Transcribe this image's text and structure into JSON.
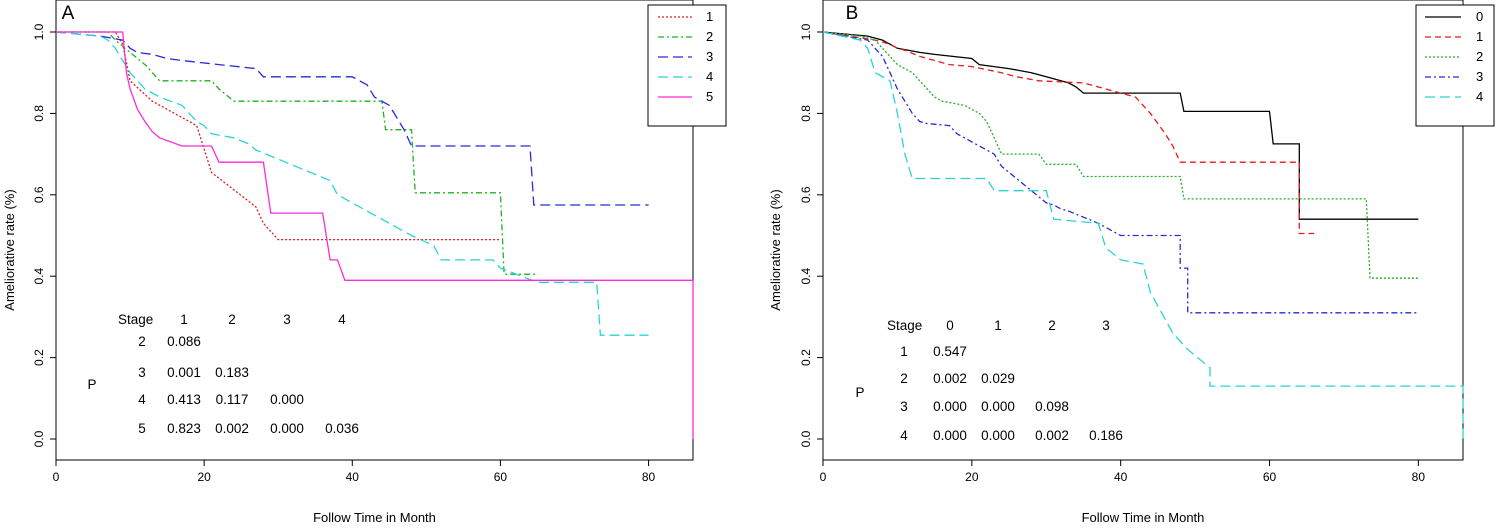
{
  "chart_data": [
    {
      "type": "line",
      "panel_label": "A",
      "xlabel": "Follow Time in Month",
      "ylabel": "Ameliorative rate (%)",
      "xlim": [
        0,
        86
      ],
      "ylim": [
        0,
        1
      ],
      "x_ticks": [
        "0",
        "20",
        "40",
        "60",
        "80"
      ],
      "y_ticks": [
        "0.0",
        "0.2",
        "0.4",
        "0.6",
        "0.8",
        "1.0"
      ],
      "legend": [
        "1",
        "2",
        "3",
        "4",
        "5"
      ],
      "series": [
        {
          "name": "1",
          "color": "#e41a1c",
          "dash": "dotted",
          "points": [
            [
              0,
              1.0
            ],
            [
              8,
              1.0
            ],
            [
              9,
              0.97
            ],
            [
              10,
              0.88
            ],
            [
              13,
              0.83
            ],
            [
              19,
              0.77
            ],
            [
              21,
              0.655
            ],
            [
              27,
              0.57
            ],
            [
              28,
              0.53
            ],
            [
              30,
              0.49
            ],
            [
              60,
              0.49
            ]
          ]
        },
        {
          "name": "2",
          "color": "#22b022",
          "dash": "dashdot",
          "points": [
            [
              0,
              1.0
            ],
            [
              7,
              1.0
            ],
            [
              8,
              0.98
            ],
            [
              10,
              0.95
            ],
            [
              12,
              0.92
            ],
            [
              14,
              0.88
            ],
            [
              21,
              0.88
            ],
            [
              22,
              0.86
            ],
            [
              24,
              0.83
            ],
            [
              44,
              0.83
            ],
            [
              44.5,
              0.76
            ],
            [
              48,
              0.76
            ],
            [
              48.5,
              0.605
            ],
            [
              60,
              0.605
            ],
            [
              60.5,
              0.405
            ],
            [
              65,
              0.405
            ]
          ]
        },
        {
          "name": "3",
          "color": "#2a2ad6",
          "dash": "longdash",
          "points": [
            [
              0,
              1.0
            ],
            [
              6,
              0.99
            ],
            [
              9,
              0.98
            ],
            [
              10,
              0.96
            ],
            [
              11,
              0.95
            ],
            [
              13,
              0.945
            ],
            [
              15,
              0.935
            ],
            [
              17,
              0.93
            ],
            [
              22,
              0.92
            ],
            [
              27,
              0.91
            ],
            [
              28,
              0.89
            ],
            [
              40,
              0.89
            ],
            [
              42,
              0.87
            ],
            [
              43,
              0.84
            ],
            [
              45,
              0.82
            ],
            [
              46,
              0.79
            ],
            [
              47,
              0.76
            ],
            [
              48,
              0.72
            ],
            [
              64,
              0.72
            ],
            [
              64.5,
              0.575
            ],
            [
              80,
              0.575
            ]
          ]
        },
        {
          "name": "4",
          "color": "#2ad4d4",
          "dash": "longdash",
          "points": [
            [
              0,
              1.0
            ],
            [
              6,
              0.99
            ],
            [
              7,
              0.98
            ],
            [
              8,
              0.96
            ],
            [
              9,
              0.93
            ],
            [
              10,
              0.9
            ],
            [
              11,
              0.88
            ],
            [
              12,
              0.86
            ],
            [
              14,
              0.84
            ],
            [
              17,
              0.82
            ],
            [
              18,
              0.8
            ],
            [
              19,
              0.78
            ],
            [
              20,
              0.77
            ],
            [
              21,
              0.75
            ],
            [
              24,
              0.74
            ],
            [
              26,
              0.725
            ],
            [
              27,
              0.71
            ],
            [
              29,
              0.695
            ],
            [
              31,
              0.68
            ],
            [
              33,
              0.665
            ],
            [
              35,
              0.65
            ],
            [
              37,
              0.635
            ],
            [
              38,
              0.6
            ],
            [
              40,
              0.58
            ],
            [
              42,
              0.56
            ],
            [
              44,
              0.54
            ],
            [
              46,
              0.52
            ],
            [
              48,
              0.5
            ],
            [
              51,
              0.475
            ],
            [
              52,
              0.44
            ],
            [
              59,
              0.44
            ],
            [
              60,
              0.42
            ],
            [
              65,
              0.385
            ],
            [
              73,
              0.385
            ],
            [
              73.5,
              0.255
            ],
            [
              80,
              0.255
            ]
          ]
        },
        {
          "name": "5",
          "color": "#ff2bd6",
          "dash": "solid",
          "points": [
            [
              0,
              1.0
            ],
            [
              9,
              1.0
            ],
            [
              9.5,
              0.9
            ],
            [
              10,
              0.86
            ],
            [
              11,
              0.81
            ],
            [
              12,
              0.78
            ],
            [
              13,
              0.755
            ],
            [
              14,
              0.74
            ],
            [
              17,
              0.72
            ],
            [
              21,
              0.72
            ],
            [
              22,
              0.68
            ],
            [
              28,
              0.68
            ],
            [
              29,
              0.555
            ],
            [
              36,
              0.555
            ],
            [
              37,
              0.44
            ],
            [
              38,
              0.44
            ],
            [
              39,
              0.39
            ],
            [
              86,
              0.39
            ],
            [
              86,
              0.0
            ]
          ]
        }
      ],
      "pvalue_table": {
        "stage_label": "Stage",
        "p_label": "P",
        "columns": [
          "1",
          "2",
          "3",
          "4"
        ],
        "rows": [
          {
            "stage": "2",
            "values": [
              "0.086"
            ]
          },
          {
            "stage": "3",
            "values": [
              "0.001",
              "0.183"
            ]
          },
          {
            "stage": "4",
            "values": [
              "0.413",
              "0.117",
              "0.000"
            ]
          },
          {
            "stage": "5",
            "values": [
              "0.823",
              "0.002",
              "0.000",
              "0.036"
            ]
          }
        ]
      }
    },
    {
      "type": "line",
      "panel_label": "B",
      "xlabel": "Follow Time in Month",
      "ylabel": "Ameliorative rate (%)",
      "xlim": [
        0,
        86
      ],
      "ylim": [
        0,
        1
      ],
      "x_ticks": [
        "0",
        "20",
        "40",
        "60",
        "80"
      ],
      "y_ticks": [
        "0.0",
        "0.2",
        "0.4",
        "0.6",
        "0.8",
        "1.0"
      ],
      "legend": [
        "0",
        "1",
        "2",
        "3",
        "4"
      ],
      "series": [
        {
          "name": "0",
          "color": "#000000",
          "dash": "solid",
          "points": [
            [
              0,
              1.0
            ],
            [
              6,
              0.99
            ],
            [
              8,
              0.98
            ],
            [
              9,
              0.97
            ],
            [
              10,
              0.96
            ],
            [
              13,
              0.95
            ],
            [
              15,
              0.945
            ],
            [
              20,
              0.935
            ],
            [
              21,
              0.92
            ],
            [
              25,
              0.91
            ],
            [
              28,
              0.9
            ],
            [
              30,
              0.89
            ],
            [
              33,
              0.875
            ],
            [
              34,
              0.865
            ],
            [
              35,
              0.85
            ],
            [
              48,
              0.85
            ],
            [
              48.5,
              0.805
            ],
            [
              60,
              0.805
            ],
            [
              60.5,
              0.725
            ],
            [
              64,
              0.725
            ],
            [
              64,
              0.54
            ],
            [
              80,
              0.54
            ]
          ]
        },
        {
          "name": "1",
          "color": "#e41a1c",
          "dash": "dashed",
          "points": [
            [
              0,
              1.0
            ],
            [
              7,
              0.98
            ],
            [
              9,
              0.97
            ],
            [
              10,
              0.96
            ],
            [
              11,
              0.955
            ],
            [
              13,
              0.94
            ],
            [
              15,
              0.93
            ],
            [
              17,
              0.92
            ],
            [
              20,
              0.915
            ],
            [
              24,
              0.9
            ],
            [
              26,
              0.89
            ],
            [
              29,
              0.88
            ],
            [
              35,
              0.875
            ],
            [
              38,
              0.86
            ],
            [
              40,
              0.85
            ],
            [
              42,
              0.84
            ],
            [
              43,
              0.82
            ],
            [
              44,
              0.8
            ],
            [
              45,
              0.775
            ],
            [
              46,
              0.75
            ],
            [
              47,
              0.72
            ],
            [
              48,
              0.68
            ],
            [
              64,
              0.68
            ],
            [
              64,
              0.505
            ],
            [
              66,
              0.505
            ]
          ]
        },
        {
          "name": "2",
          "color": "#22b022",
          "dash": "dotted",
          "points": [
            [
              0,
              1.0
            ],
            [
              5,
              0.99
            ],
            [
              7,
              0.98
            ],
            [
              8,
              0.96
            ],
            [
              9,
              0.94
            ],
            [
              10,
              0.92
            ],
            [
              12,
              0.9
            ],
            [
              13,
              0.88
            ],
            [
              14,
              0.86
            ],
            [
              15,
              0.84
            ],
            [
              16,
              0.83
            ],
            [
              19,
              0.82
            ],
            [
              20,
              0.81
            ],
            [
              21,
              0.8
            ],
            [
              22,
              0.78
            ],
            [
              23,
              0.74
            ],
            [
              24,
              0.7
            ],
            [
              29,
              0.7
            ],
            [
              30,
              0.675
            ],
            [
              34,
              0.675
            ],
            [
              35,
              0.645
            ],
            [
              48,
              0.645
            ],
            [
              48.5,
              0.59
            ],
            [
              73,
              0.59
            ],
            [
              73.5,
              0.395
            ],
            [
              80,
              0.395
            ]
          ]
        },
        {
          "name": "3",
          "color": "#2a2ad6",
          "dash": "dashdot",
          "points": [
            [
              0,
              1.0
            ],
            [
              6,
              0.98
            ],
            [
              7,
              0.96
            ],
            [
              8,
              0.94
            ],
            [
              9,
              0.9
            ],
            [
              10,
              0.86
            ],
            [
              11,
              0.83
            ],
            [
              12,
              0.8
            ],
            [
              13,
              0.78
            ],
            [
              14,
              0.775
            ],
            [
              17,
              0.77
            ],
            [
              18,
              0.75
            ],
            [
              19,
              0.74
            ],
            [
              20,
              0.73
            ],
            [
              21,
              0.72
            ],
            [
              22,
              0.71
            ],
            [
              23,
              0.7
            ],
            [
              24,
              0.67
            ],
            [
              28,
              0.61
            ],
            [
              30,
              0.58
            ],
            [
              31,
              0.575
            ],
            [
              32,
              0.565
            ],
            [
              33,
              0.56
            ],
            [
              35,
              0.545
            ],
            [
              37,
              0.53
            ],
            [
              38,
              0.52
            ],
            [
              40,
              0.5
            ],
            [
              48,
              0.5
            ],
            [
              48,
              0.42
            ],
            [
              49,
              0.42
            ],
            [
              49,
              0.31
            ],
            [
              80,
              0.31
            ]
          ]
        },
        {
          "name": "4",
          "color": "#2ad4d4",
          "dash": "longdash",
          "points": [
            [
              0,
              1.0
            ],
            [
              5,
              0.98
            ],
            [
              6,
              0.96
            ],
            [
              7,
              0.9
            ],
            [
              9,
              0.88
            ],
            [
              10,
              0.8
            ],
            [
              11,
              0.7
            ],
            [
              12,
              0.64
            ],
            [
              22,
              0.64
            ],
            [
              23,
              0.61
            ],
            [
              30,
              0.61
            ],
            [
              31,
              0.54
            ],
            [
              37,
              0.53
            ],
            [
              38,
              0.47
            ],
            [
              40,
              0.44
            ],
            [
              43,
              0.43
            ],
            [
              44,
              0.36
            ],
            [
              47,
              0.26
            ],
            [
              49,
              0.22
            ],
            [
              52,
              0.175
            ],
            [
              52,
              0.13
            ],
            [
              86,
              0.13
            ],
            [
              86,
              0.0
            ]
          ]
        }
      ],
      "pvalue_table": {
        "stage_label": "Stage",
        "p_label": "P",
        "columns": [
          "0",
          "1",
          "2",
          "3"
        ],
        "rows": [
          {
            "stage": "1",
            "values": [
              "0.547"
            ]
          },
          {
            "stage": "2",
            "values": [
              "0.002",
              "0.029"
            ]
          },
          {
            "stage": "3",
            "values": [
              "0.000",
              "0.000",
              "0.098"
            ]
          },
          {
            "stage": "4",
            "values": [
              "0.000",
              "0.000",
              "0.002",
              "0.186"
            ]
          }
        ]
      }
    }
  ]
}
